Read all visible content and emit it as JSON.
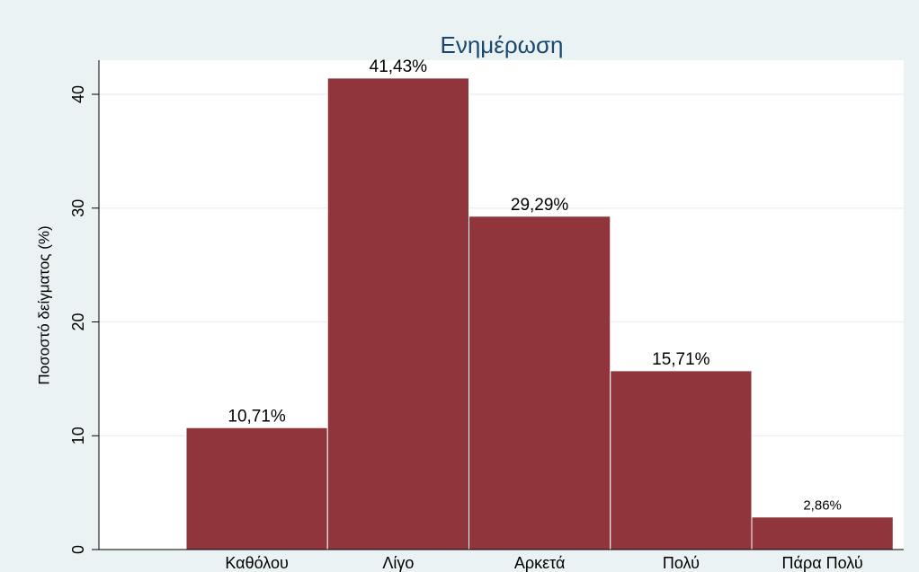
{
  "chart_data": {
    "type": "bar",
    "title": "Ενημέρωση",
    "ylabel": "Ποσοστό δείγματος (%)",
    "categories": [
      "Καθόλου",
      "Λίγο",
      "Αρκετά",
      "Πολύ",
      "Πάρα Πολύ"
    ],
    "values": [
      10.71,
      41.43,
      29.29,
      15.71,
      2.86
    ],
    "value_labels": [
      "10,71%",
      "41,43%",
      "29,29%",
      "15,71%",
      "2,86%"
    ],
    "color": "#90353b",
    "ylim": [
      0,
      43
    ],
    "yticks": [
      0,
      10,
      20,
      30,
      40
    ],
    "grid": true
  }
}
